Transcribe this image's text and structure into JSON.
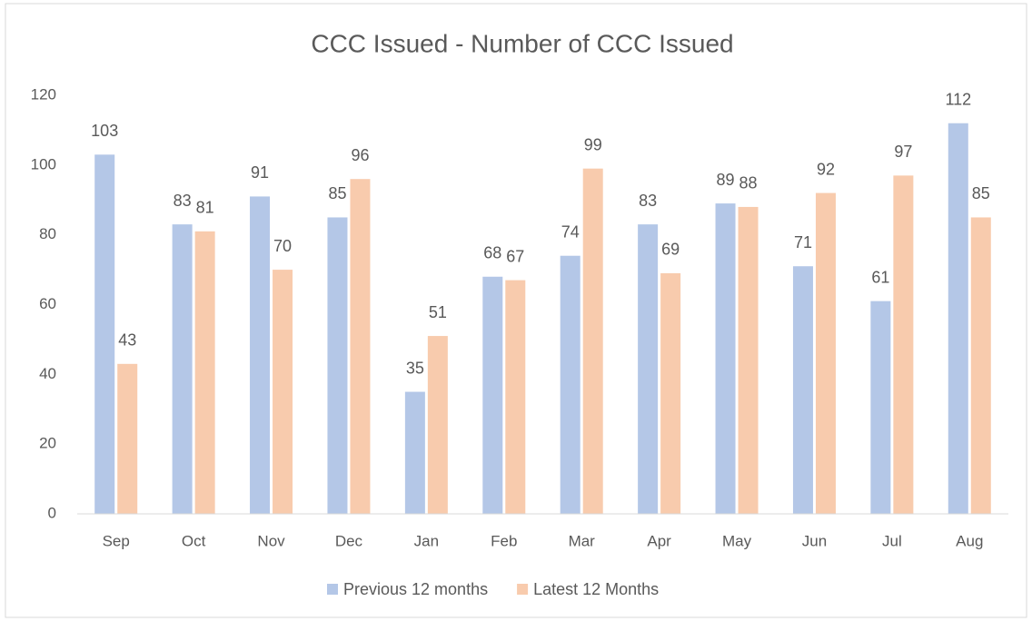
{
  "chart_data": {
    "type": "bar",
    "title": "CCC Issued - Number of CCC Issued",
    "categories": [
      "Sep",
      "Oct",
      "Nov",
      "Dec",
      "Jan",
      "Feb",
      "Mar",
      "Apr",
      "May",
      "Jun",
      "Jul",
      "Aug"
    ],
    "series": [
      {
        "name": "Previous 12 months",
        "color": "#b4c7e7",
        "values": [
          103,
          83,
          91,
          85,
          35,
          68,
          74,
          83,
          89,
          71,
          61,
          112
        ]
      },
      {
        "name": "Latest 12 Months",
        "color": "#f8cbad",
        "values": [
          43,
          81,
          70,
          96,
          51,
          67,
          99,
          69,
          88,
          92,
          97,
          85
        ]
      }
    ],
    "ylim": [
      0,
      120
    ],
    "yticks": [
      0,
      20,
      40,
      60,
      80,
      100,
      120
    ],
    "grid": false,
    "legend": "bottom"
  }
}
